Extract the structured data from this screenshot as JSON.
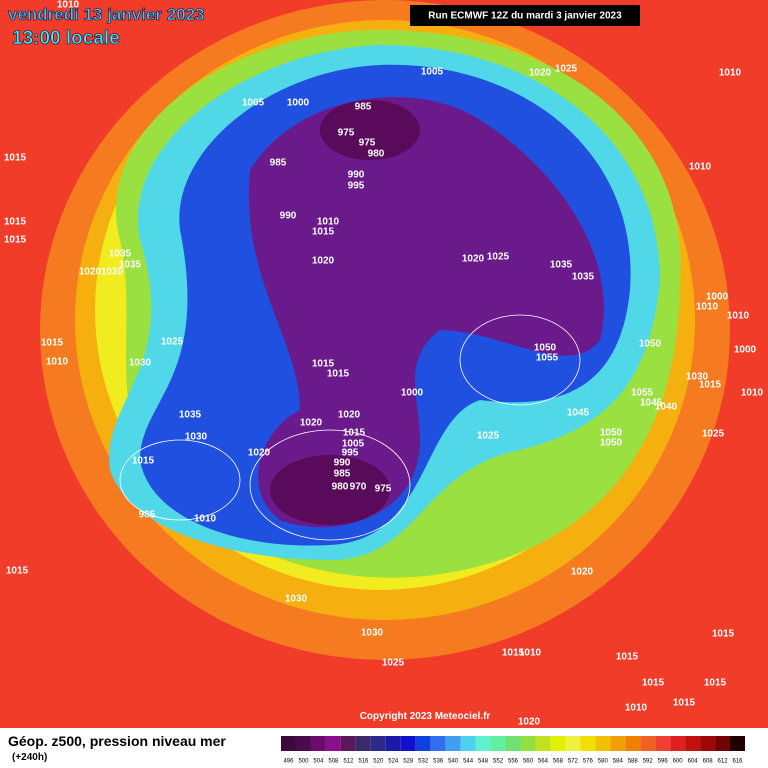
{
  "header": {
    "date": "vendredi 13 janvier 2023",
    "time": "13:00 locale",
    "run": "Run ECMWF 12Z du mardi 3 janvier 2023"
  },
  "isobar_labels": [
    "1010",
    "1005",
    "1020",
    "1025",
    "1010",
    "1005",
    "1000",
    "985",
    "975",
    "975",
    "980",
    "985",
    "1015",
    "1010",
    "990",
    "995",
    "990",
    "1010",
    "1015",
    "1015",
    "1015",
    "1035",
    "1035",
    "1030",
    "1020",
    "1020",
    "1020",
    "1025",
    "1035",
    "1035",
    "1000",
    "1010",
    "1010",
    "1015",
    "1025",
    "1050",
    "1055",
    "1050",
    "1000",
    "1010",
    "1030",
    "1015",
    "1015",
    "1030",
    "1015",
    "1000",
    "1010",
    "1055",
    "1045",
    "1040",
    "1045",
    "1035",
    "1020",
    "1020",
    "1015",
    "1025",
    "1050",
    "1025",
    "1030",
    "1005",
    "1050",
    "1020",
    "995",
    "1015",
    "990",
    "985",
    "980",
    "970",
    "975",
    "985",
    "1010",
    "1015",
    "1020",
    "1030",
    "1030",
    "1015",
    "1015",
    "1010",
    "1015",
    "1025",
    "1015",
    "1015",
    "1015",
    "1010",
    "1020"
  ],
  "copyright": "Copyright 2023 Meteociel.fr",
  "legend": {
    "title": "Géop. z500, pression niveau mer",
    "subtitle": "(+240h)",
    "values": [
      496,
      500,
      504,
      508,
      512,
      516,
      520,
      524,
      528,
      532,
      536,
      540,
      544,
      548,
      552,
      556,
      560,
      564,
      568,
      572,
      576,
      580,
      584,
      588,
      592,
      596,
      600,
      604,
      608,
      612,
      616
    ],
    "colors": [
      "#3a0a3a",
      "#4b0a4b",
      "#6e0a6e",
      "#8a0f8a",
      "#5a1a5a",
      "#3a2a6a",
      "#2a2a8a",
      "#1a1aaa",
      "#1010cc",
      "#1040e0",
      "#3070f0",
      "#40a0f0",
      "#50d0f0",
      "#60f0d0",
      "#60f0a0",
      "#70e070",
      "#90e040",
      "#c0e020",
      "#e0f000",
      "#f0f040",
      "#f0e000",
      "#f0c000",
      "#f0a000",
      "#f08000",
      "#f06020",
      "#f04030",
      "#e02020",
      "#c01010",
      "#a00808",
      "#700404",
      "#200000"
    ]
  }
}
